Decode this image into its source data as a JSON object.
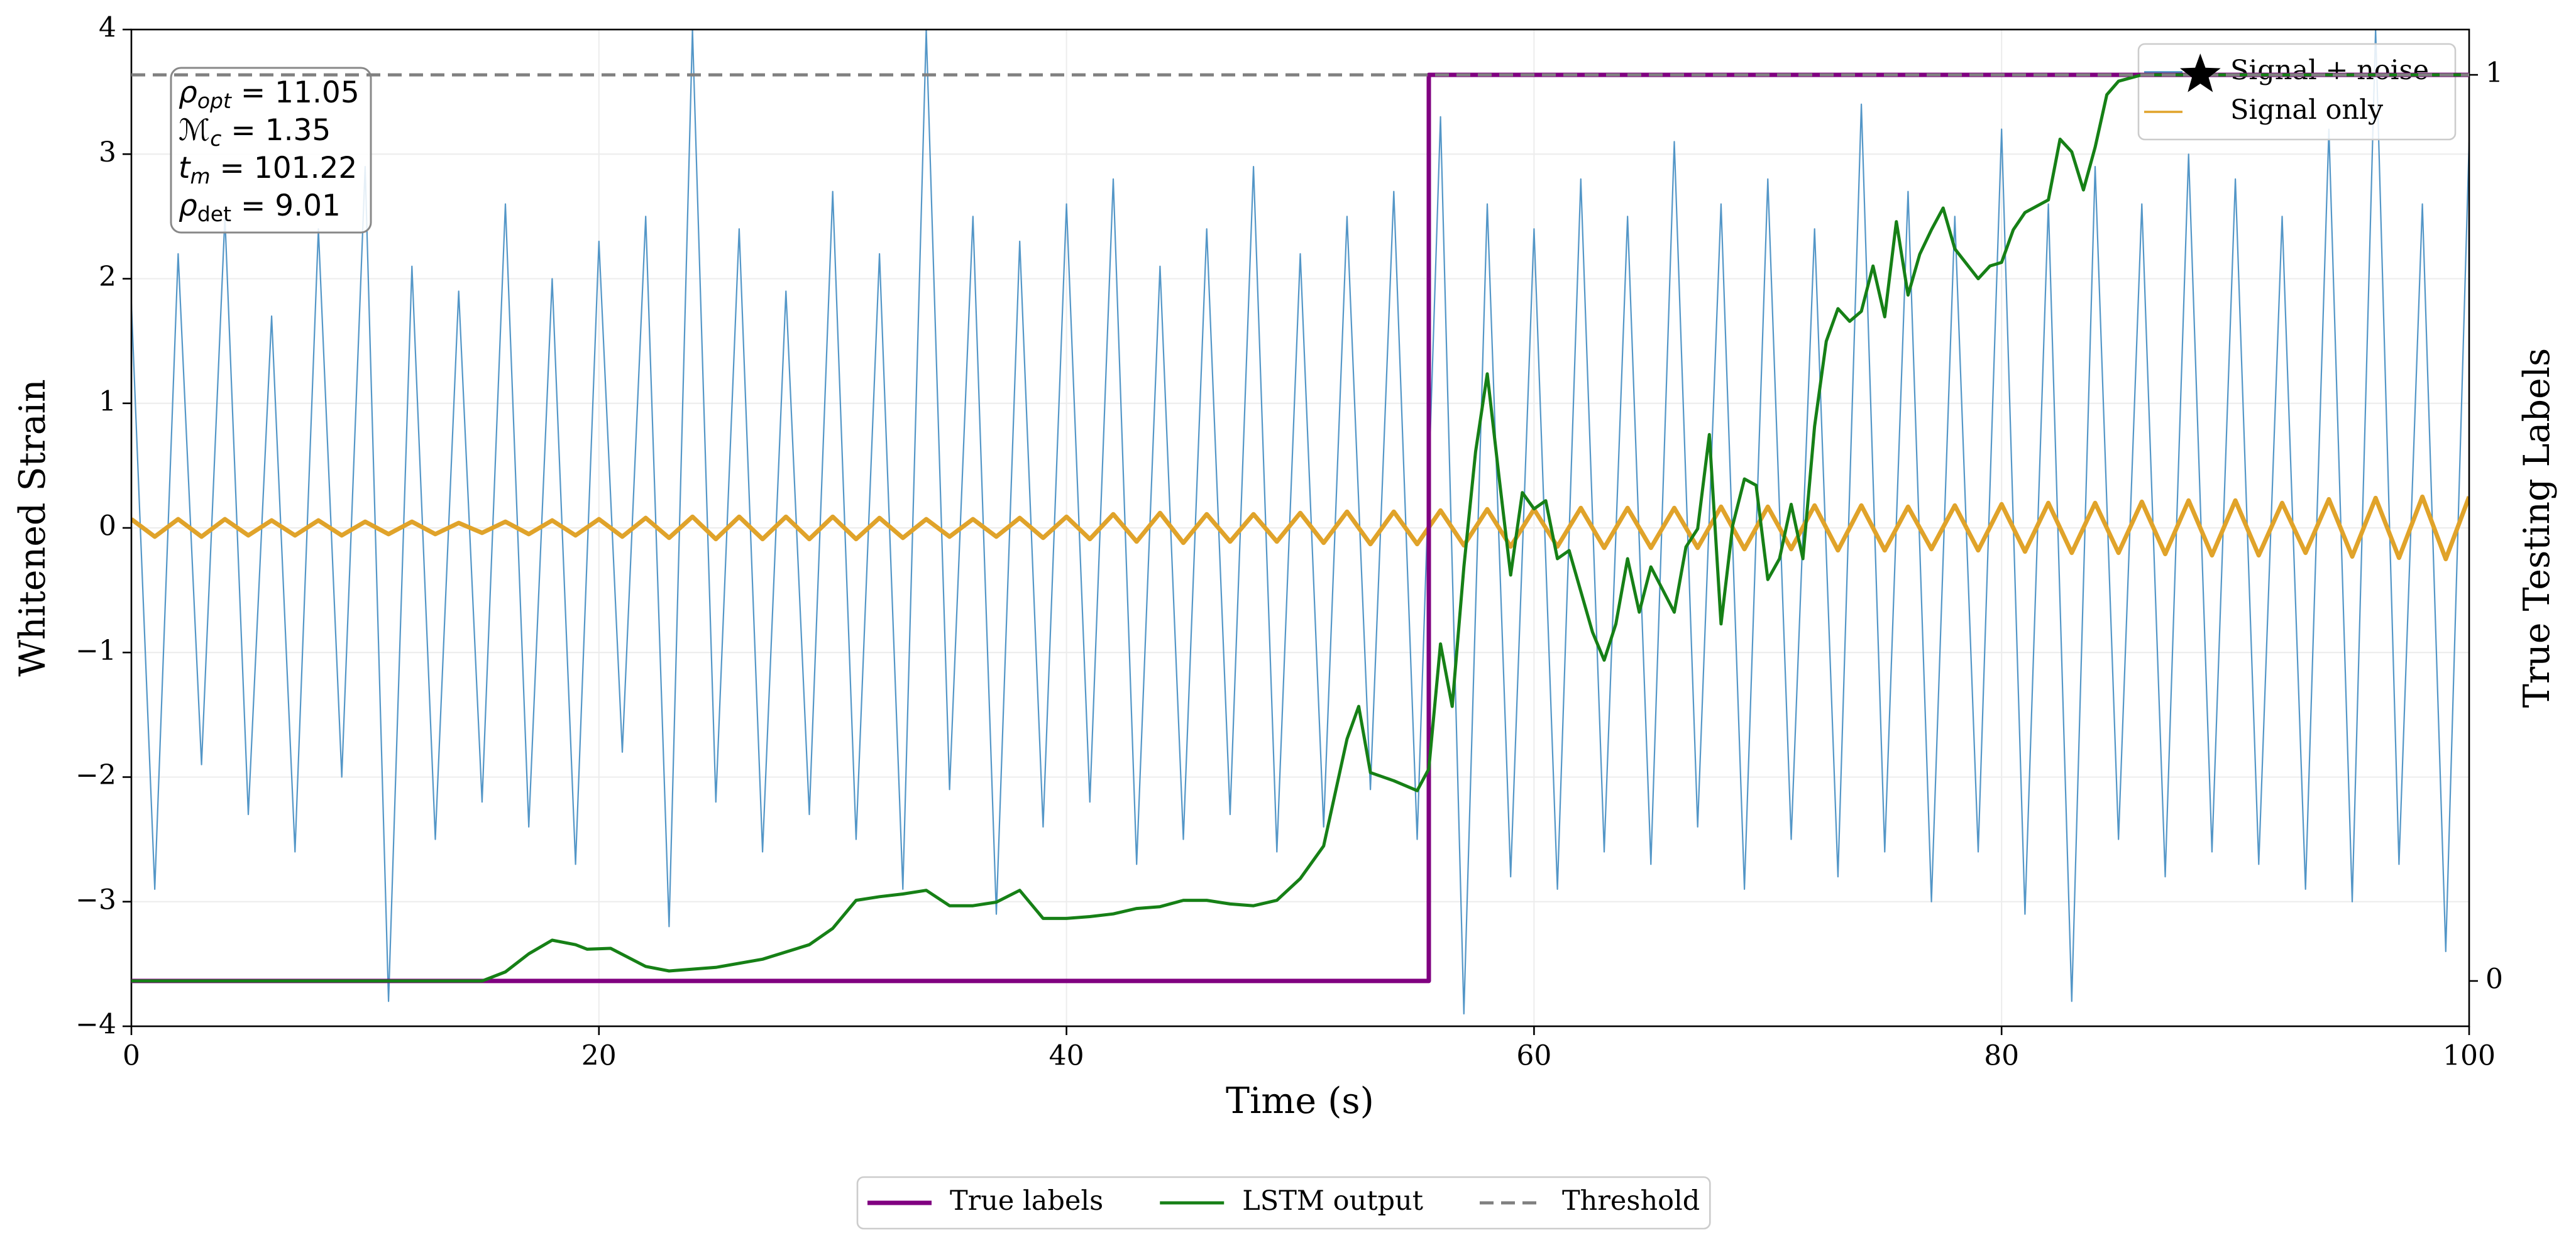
{
  "chart_data": {
    "type": "line",
    "xlabel": "Time (s)",
    "ylabel": "Whitened Strain",
    "y2label": "True Testing Labels",
    "xlim": [
      0,
      100
    ],
    "xticks": [
      0,
      20,
      40,
      60,
      80,
      100
    ],
    "ylim": [
      -4,
      4
    ],
    "yticks": [
      {
        "value": -4,
        "label": "−4"
      },
      {
        "value": -3,
        "label": "−3"
      },
      {
        "value": -2,
        "label": "−2"
      },
      {
        "value": -1,
        "label": "−1"
      },
      0,
      1,
      2,
      3,
      4
    ],
    "y2lim": [
      -0.05,
      1.05
    ],
    "y2ticks": [
      0,
      1
    ],
    "grid": true,
    "x": [
      0,
      1,
      2,
      3,
      4,
      5,
      6,
      7,
      8,
      9,
      10,
      11,
      12,
      13,
      14,
      15,
      16,
      17,
      18,
      19,
      20,
      21,
      22,
      23,
      24,
      25,
      26,
      27,
      28,
      29,
      30,
      31,
      32,
      33,
      34,
      35,
      36,
      37,
      38,
      39,
      40,
      41,
      42,
      43,
      44,
      45,
      46,
      47,
      48,
      49,
      50,
      51,
      52,
      53,
      54,
      55,
      56,
      57,
      58,
      59,
      60,
      61,
      62,
      63,
      64,
      65,
      66,
      67,
      68,
      69,
      70,
      71,
      72,
      73,
      74,
      75,
      76,
      77,
      78,
      79,
      80,
      81,
      82,
      83,
      84,
      85,
      86,
      87,
      88,
      89,
      90,
      91,
      92,
      93,
      94,
      95,
      96,
      97,
      98,
      99,
      100
    ],
    "series": [
      {
        "name": "Signal + noise",
        "color": "#4a90c4",
        "legend": "upper right",
        "values": [
          1.8,
          -2.9,
          2.2,
          -1.9,
          2.5,
          -2.3,
          1.7,
          -2.6,
          2.4,
          -2.0,
          2.9,
          -3.8,
          2.1,
          -2.5,
          1.9,
          -2.2,
          2.6,
          -2.4,
          2.0,
          -2.7,
          2.3,
          -1.8,
          2.5,
          -3.2,
          4.0,
          -2.2,
          2.4,
          -2.6,
          1.9,
          -2.3,
          2.7,
          -2.5,
          2.2,
          -2.9,
          4.0,
          -2.1,
          2.5,
          -3.1,
          2.3,
          -2.4,
          2.6,
          -2.2,
          2.8,
          -2.7,
          2.1,
          -2.5,
          2.4,
          -2.3,
          2.9,
          -2.6,
          2.2,
          -2.4,
          2.5,
          -2.1,
          2.7,
          -2.5,
          3.3,
          -3.9,
          2.6,
          -2.8,
          2.4,
          -2.9,
          2.8,
          -2.6,
          2.5,
          -2.7,
          3.1,
          -2.4,
          2.6,
          -2.9,
          2.8,
          -2.5,
          2.4,
          -2.8,
          3.4,
          -2.6,
          2.7,
          -3.0,
          2.5,
          -2.6,
          3.2,
          -3.1,
          2.6,
          -3.8,
          2.9,
          -2.5,
          2.6,
          -2.8,
          3.0,
          -2.6,
          2.8,
          -2.7,
          2.5,
          -2.9,
          3.2,
          -3.0,
          4.0,
          -2.7,
          2.6,
          -3.4,
          3.1
        ]
      },
      {
        "name": "Signal only",
        "color": "#e0a32a",
        "legend": "upper right",
        "values": [
          0.07,
          -0.07,
          0.07,
          -0.07,
          0.07,
          -0.06,
          0.06,
          -0.06,
          0.06,
          -0.06,
          0.05,
          -0.05,
          0.05,
          -0.05,
          0.04,
          -0.04,
          0.05,
          -0.05,
          0.06,
          -0.06,
          0.07,
          -0.07,
          0.08,
          -0.08,
          0.09,
          -0.09,
          0.09,
          -0.09,
          0.09,
          -0.09,
          0.09,
          -0.09,
          0.08,
          -0.08,
          0.07,
          -0.07,
          0.07,
          -0.07,
          0.08,
          -0.08,
          0.09,
          -0.09,
          0.11,
          -0.11,
          0.12,
          -0.12,
          0.11,
          -0.11,
          0.11,
          -0.11,
          0.12,
          -0.12,
          0.13,
          -0.13,
          0.13,
          -0.13,
          0.14,
          -0.14,
          0.15,
          -0.15,
          0.15,
          -0.15,
          0.16,
          -0.16,
          0.16,
          -0.16,
          0.16,
          -0.16,
          0.17,
          -0.17,
          0.17,
          -0.17,
          0.18,
          -0.18,
          0.18,
          -0.18,
          0.17,
          -0.17,
          0.18,
          -0.18,
          0.19,
          -0.19,
          0.2,
          -0.2,
          0.2,
          -0.2,
          0.21,
          -0.21,
          0.22,
          -0.22,
          0.22,
          -0.22,
          0.2,
          -0.2,
          0.23,
          -0.23,
          0.24,
          -0.24,
          0.25,
          -0.25,
          0.25
        ]
      },
      {
        "name": "True labels",
        "color": "#800080",
        "axis": "y2",
        "legend": "bottom",
        "x": [
          0,
          55.5,
          55.5,
          100
        ],
        "values": [
          0,
          0,
          1,
          1
        ]
      },
      {
        "name": "LSTM output",
        "color": "#168016",
        "axis": "y2",
        "legend": "bottom",
        "x": [
          0,
          15,
          16,
          17,
          18,
          19,
          19.5,
          20.5,
          22,
          23,
          25,
          27,
          29,
          30,
          31,
          32,
          33,
          34,
          35,
          36,
          37,
          38,
          39,
          40,
          41,
          42,
          43,
          44,
          45,
          46,
          47,
          48,
          49,
          50,
          51,
          52,
          52.5,
          53,
          54,
          55,
          55.5,
          56,
          56.5,
          57,
          57.5,
          58,
          58.5,
          59,
          59.5,
          60,
          60.5,
          61,
          61.5,
          62,
          62.5,
          63,
          63.5,
          64,
          64.5,
          65,
          66,
          66.5,
          67,
          67.5,
          68,
          68.5,
          69,
          69.5,
          70,
          70.5,
          71,
          71.5,
          72,
          72.5,
          73,
          73.5,
          74,
          74.5,
          75,
          75.5,
          76,
          76.5,
          77,
          77.5,
          78,
          79,
          79.5,
          80,
          80.5,
          81,
          82,
          82.5,
          83,
          83.5,
          84,
          84.5,
          85,
          86,
          100
        ],
        "values": [
          0,
          0,
          0.01,
          0.03,
          0.045,
          0.04,
          0.035,
          0.036,
          0.016,
          0.011,
          0.015,
          0.024,
          0.04,
          0.058,
          0.089,
          0.093,
          0.096,
          0.1,
          0.083,
          0.083,
          0.087,
          0.1,
          0.069,
          0.069,
          0.071,
          0.074,
          0.08,
          0.082,
          0.089,
          0.089,
          0.085,
          0.083,
          0.089,
          0.113,
          0.149,
          0.267,
          0.303,
          0.23,
          0.221,
          0.21,
          0.234,
          0.372,
          0.303,
          0.457,
          0.584,
          0.67,
          0.557,
          0.448,
          0.539,
          0.521,
          0.53,
          0.466,
          0.475,
          0.43,
          0.385,
          0.354,
          0.394,
          0.466,
          0.407,
          0.457,
          0.407,
          0.479,
          0.499,
          0.603,
          0.394,
          0.503,
          0.554,
          0.547,
          0.443,
          0.466,
          0.526,
          0.466,
          0.612,
          0.706,
          0.742,
          0.728,
          0.739,
          0.789,
          0.733,
          0.838,
          0.757,
          0.802,
          0.829,
          0.853,
          0.808,
          0.775,
          0.789,
          0.793,
          0.829,
          0.848,
          0.862,
          0.929,
          0.915,
          0.873,
          0.92,
          0.978,
          0.993,
          1.0,
          1.0
        ]
      },
      {
        "name": "Threshold",
        "color": "#808080",
        "axis": "y2",
        "dashed": true,
        "legend": "bottom",
        "x": [
          0,
          100
        ],
        "values": [
          1,
          1
        ]
      }
    ],
    "detection_marker": {
      "x": 88.5,
      "value": 1,
      "axis": "y2",
      "color": "#000000"
    },
    "annotations": [
      {
        "symbol": "ρ",
        "sub": "opt",
        "text": " = 11.05"
      },
      {
        "symbol": "ℳ",
        "sub": "c",
        "text": " = 1.35"
      },
      {
        "symbol": "t",
        "sub": "m",
        "text": " = 101.22"
      },
      {
        "symbol": "ρ",
        "sub": "det",
        "text": " = 9.01"
      }
    ]
  }
}
